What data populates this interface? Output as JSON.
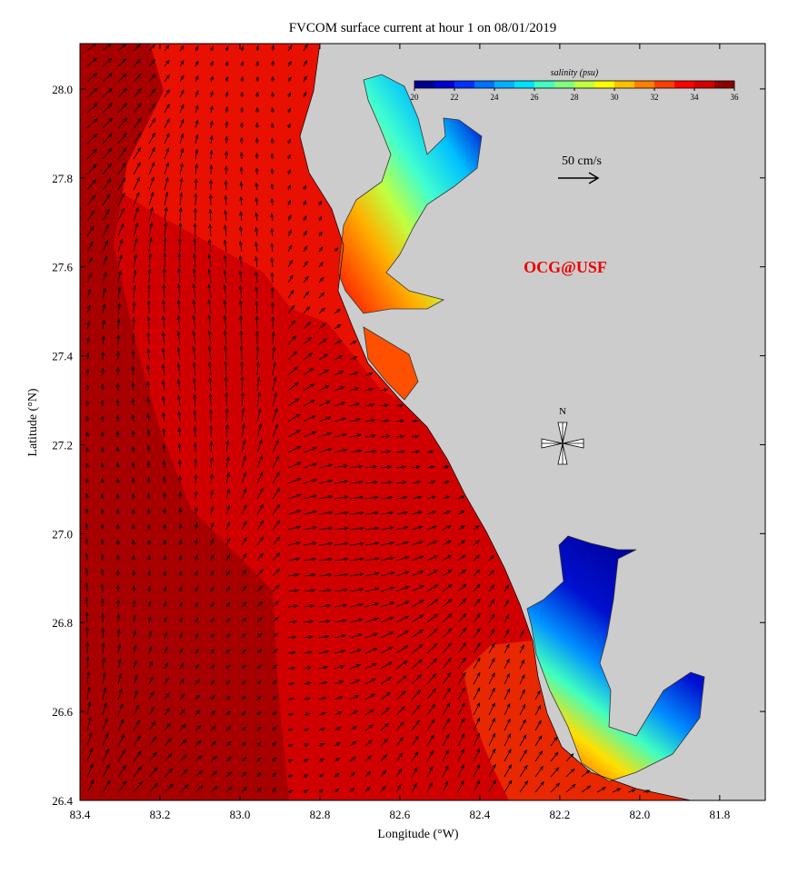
{
  "title": "FVCOM surface current at hour 1 on 08/01/2019",
  "map": {
    "xlabel": "Longitude (°W)",
    "ylabel": "Latitude (°N)",
    "xlim": [
      83.4,
      81.686
    ],
    "ylim": [
      26.4,
      28.102
    ],
    "xticks": [
      83.4,
      83.2,
      {
        "value": 83.0,
        "label": "83.0"
      },
      82.8,
      82.6,
      82.4,
      82.2,
      {
        "value": 82.0,
        "label": "82.0"
      },
      81.8
    ],
    "yticks": [
      26.4,
      26.6,
      26.8,
      {
        "value": 27.0,
        "label": "27.0"
      },
      27.2,
      27.4,
      27.6,
      27.8,
      {
        "value": 28.0,
        "label": "28.0"
      }
    ]
  },
  "colorbar": {
    "label": "salinity (psu)",
    "lim": [
      20,
      36
    ],
    "ticks": [
      20,
      22,
      24,
      26,
      28,
      30,
      32,
      34,
      36
    ],
    "colors": [
      "#000090",
      "#0000d0",
      "#0030ff",
      "#0070ff",
      "#00b0ff",
      "#00e0ff",
      "#40ffc0",
      "#80ff80",
      "#c0ff40",
      "#ffff00",
      "#ffc000",
      "#ff8000",
      "#ff4000",
      "#ff0000",
      "#d00000",
      "#900000"
    ]
  },
  "annotations": {
    "scale": "50 cm/s",
    "credit": "OCG@USF",
    "north": "N"
  }
}
